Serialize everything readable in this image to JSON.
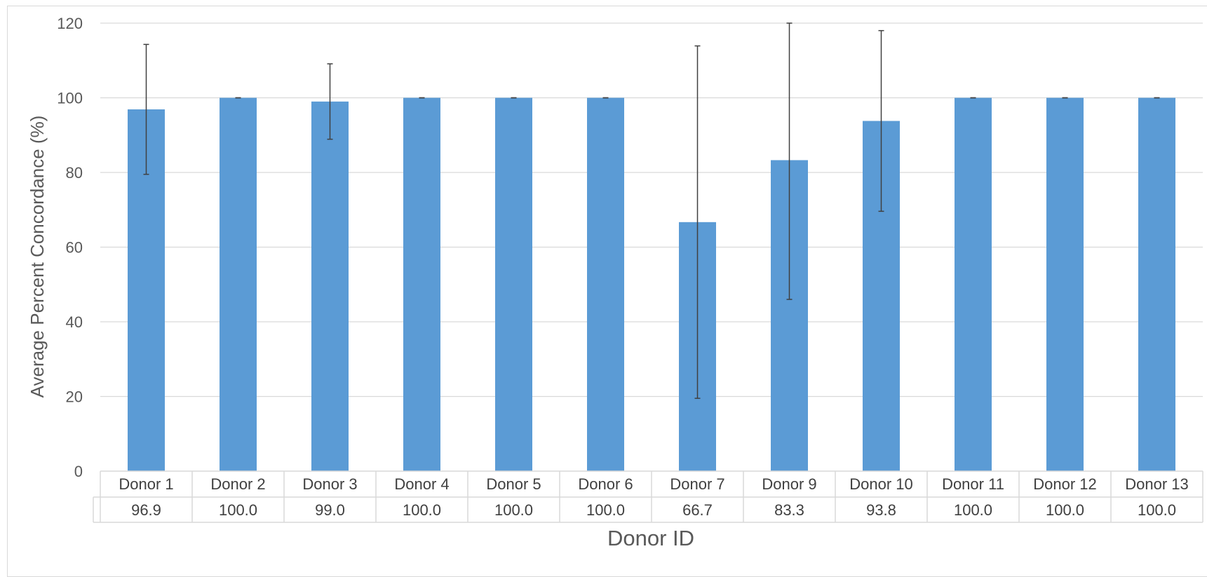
{
  "chart_data": {
    "type": "bar",
    "xlabel": "Donor ID",
    "ylabel": "Average  Percent  Concordance  (%)",
    "ylim": [
      0,
      120
    ],
    "yticks": [
      0,
      20,
      40,
      60,
      80,
      100,
      120
    ],
    "grid": true,
    "categories": [
      "Donor 1",
      "Donor 2",
      "Donor 3",
      "Donor 4",
      "Donor 5",
      "Donor 6",
      "Donor 7",
      "Donor 9",
      "Donor 10",
      "Donor 11",
      "Donor 12",
      "Donor 13"
    ],
    "values": [
      96.9,
      100.0,
      99.0,
      100.0,
      100.0,
      100.0,
      66.7,
      83.3,
      93.8,
      100.0,
      100.0,
      100.0
    ],
    "value_labels": [
      "96.9",
      "100.0",
      "99.0",
      "100.0",
      "100.0",
      "100.0",
      "66.7",
      "83.3",
      "93.8",
      "100.0",
      "100.0",
      "100.0"
    ],
    "error_bars": [
      17.4,
      0,
      10.1,
      0,
      0,
      0,
      47.2,
      37.3,
      24.2,
      0,
      0,
      0
    ],
    "bar_color": "#5b9bd5",
    "data_table": true
  }
}
